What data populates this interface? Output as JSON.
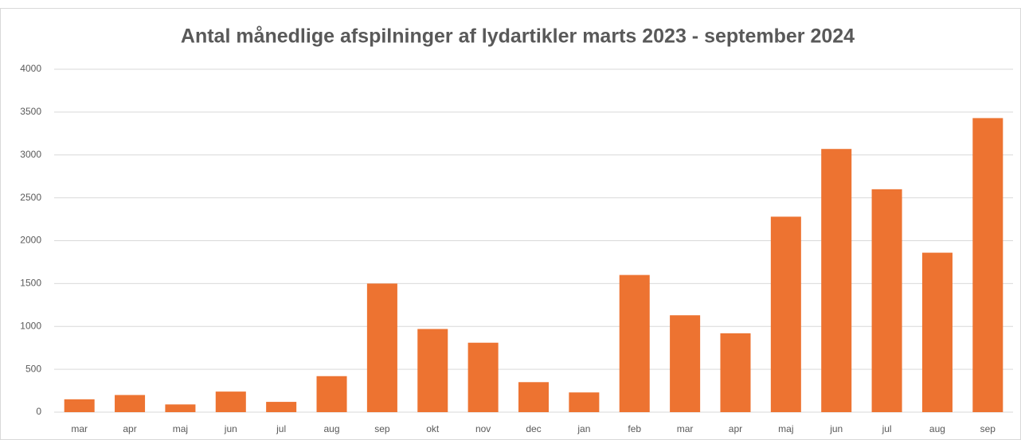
{
  "chart_data": {
    "type": "bar",
    "title": "Antal månedlige afspilninger af lydartikler marts 2023 - september 2024",
    "categories": [
      "mar",
      "apr",
      "maj",
      "jun",
      "jul",
      "aug",
      "sep",
      "okt",
      "nov",
      "dec",
      "jan",
      "feb",
      "mar",
      "apr",
      "maj",
      "jun",
      "jul",
      "aug",
      "sep"
    ],
    "values": [
      150,
      200,
      90,
      240,
      120,
      420,
      1500,
      970,
      810,
      350,
      230,
      1600,
      1130,
      920,
      2280,
      3070,
      2600,
      1860,
      3430
    ],
    "color": "#ed7331",
    "ylim": [
      0,
      4000
    ],
    "yticks": [
      0,
      500,
      1000,
      1500,
      2000,
      2500,
      3000,
      3500,
      4000
    ],
    "grid": true
  }
}
